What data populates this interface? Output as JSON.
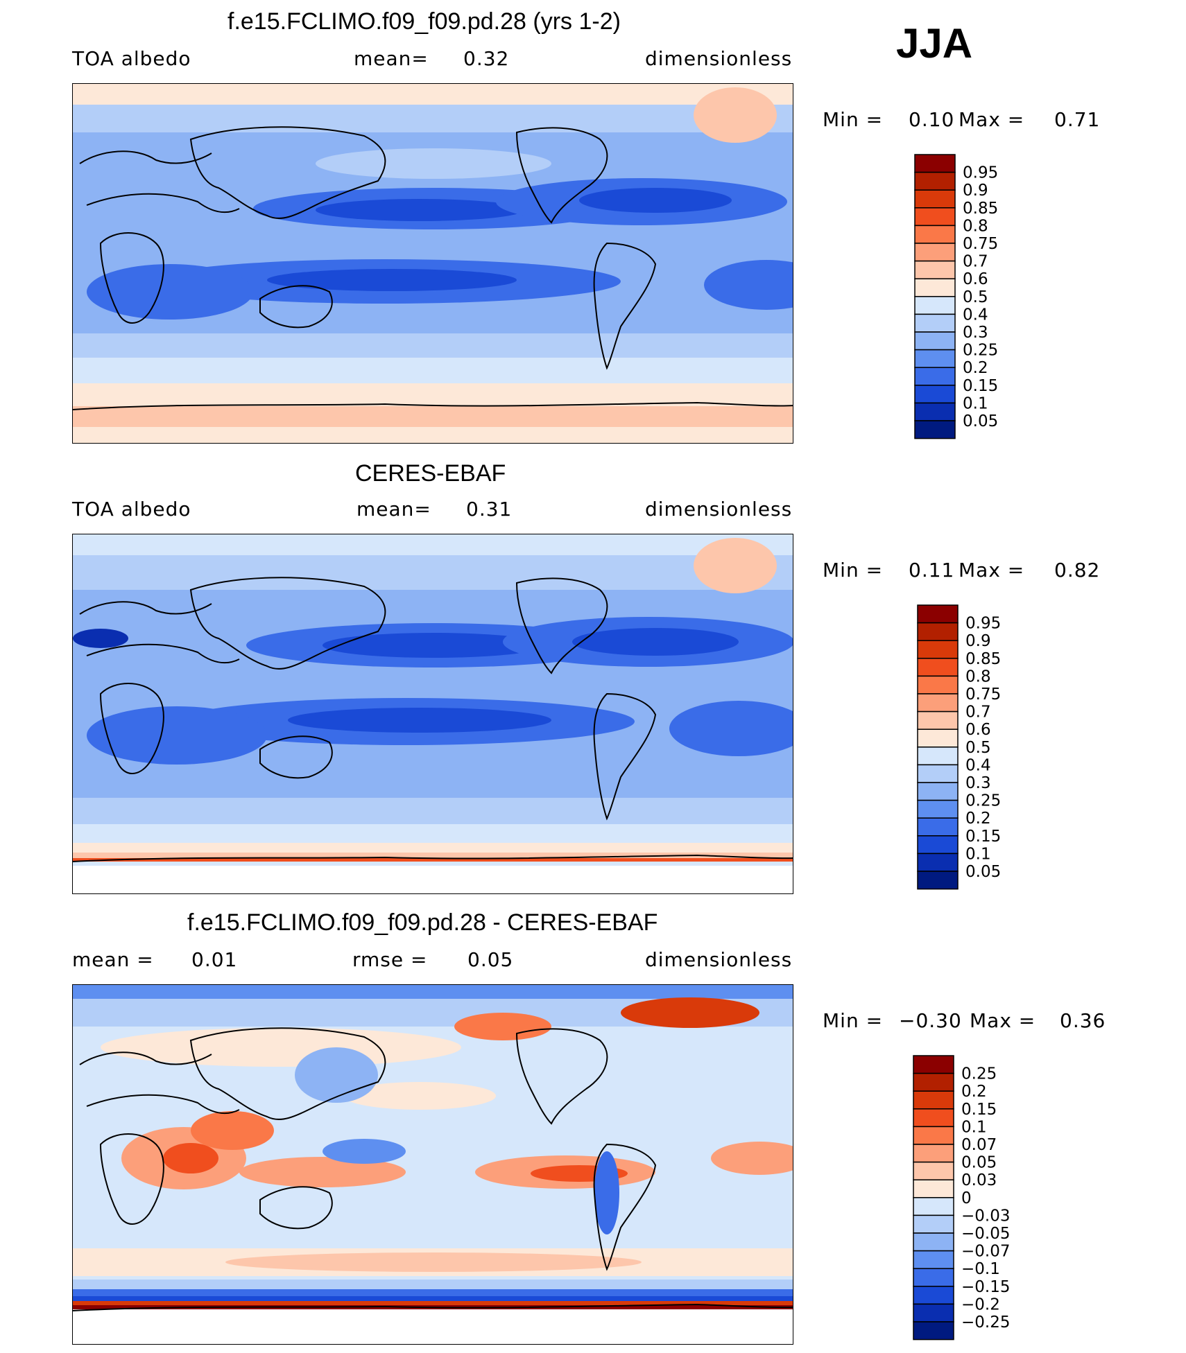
{
  "season": "JJA",
  "panels": [
    {
      "id": "model",
      "title": "f.e15.FCLIMO.f09_f09.pd.28 (yrs 1-2)",
      "left_label": "TOA albedo",
      "mean_label": "mean=",
      "mean_value": "0.32",
      "units": "dimensionless",
      "min_label": "Min =",
      "min_value": "0.10",
      "max_label": "Max =",
      "max_value": "0.71"
    },
    {
      "id": "obs",
      "title": "CERES-EBAF",
      "left_label": "TOA albedo",
      "mean_label": "mean=",
      "mean_value": "0.31",
      "units": "dimensionless",
      "min_label": "Min =",
      "min_value": "0.11",
      "max_label": "Max =",
      "max_value": "0.82"
    },
    {
      "id": "diff",
      "title": "f.e15.FCLIMO.f09_f09.pd.28 - CERES-EBAF",
      "mean_label": "mean =",
      "mean_value": "0.01",
      "rmse_label": "rmse =",
      "rmse_value": "0.05",
      "units": "dimensionless",
      "min_label": "Min =",
      "min_value": "−0.30",
      "max_label": "Max =",
      "max_value": "0.36"
    }
  ],
  "colorbars": {
    "albedo": {
      "labels": [
        "0.95",
        "0.9",
        "0.85",
        "0.8",
        "0.75",
        "0.7",
        "0.6",
        "0.5",
        "0.4",
        "0.3",
        "0.25",
        "0.2",
        "0.15",
        "0.1",
        "0.05"
      ],
      "colors": [
        "#8b0000",
        "#b22000",
        "#d93a0a",
        "#f04e1e",
        "#fa7848",
        "#fc9f7a",
        "#fdc6ab",
        "#fde8d8",
        "#d6e7fb",
        "#b3cef8",
        "#8db3f4",
        "#5e8ff0",
        "#3a6ce8",
        "#1a4ad6",
        "#0a2eb0",
        "#001a80"
      ]
    },
    "diff": {
      "labels": [
        "0.25",
        "0.2",
        "0.15",
        "0.1",
        "0.07",
        "0.05",
        "0.03",
        "0",
        "−0.03",
        "−0.05",
        "−0.07",
        "−0.1",
        "−0.15",
        "−0.2",
        "−0.25"
      ],
      "colors": [
        "#8b0000",
        "#b22000",
        "#d93a0a",
        "#f04e1e",
        "#fa7848",
        "#fc9f7a",
        "#fdc6ab",
        "#fde8d8",
        "#d6e7fb",
        "#b3cef8",
        "#8db3f4",
        "#5e8ff0",
        "#3a6ce8",
        "#1a4ad6",
        "#0a2eb0",
        "#001a80"
      ]
    }
  }
}
